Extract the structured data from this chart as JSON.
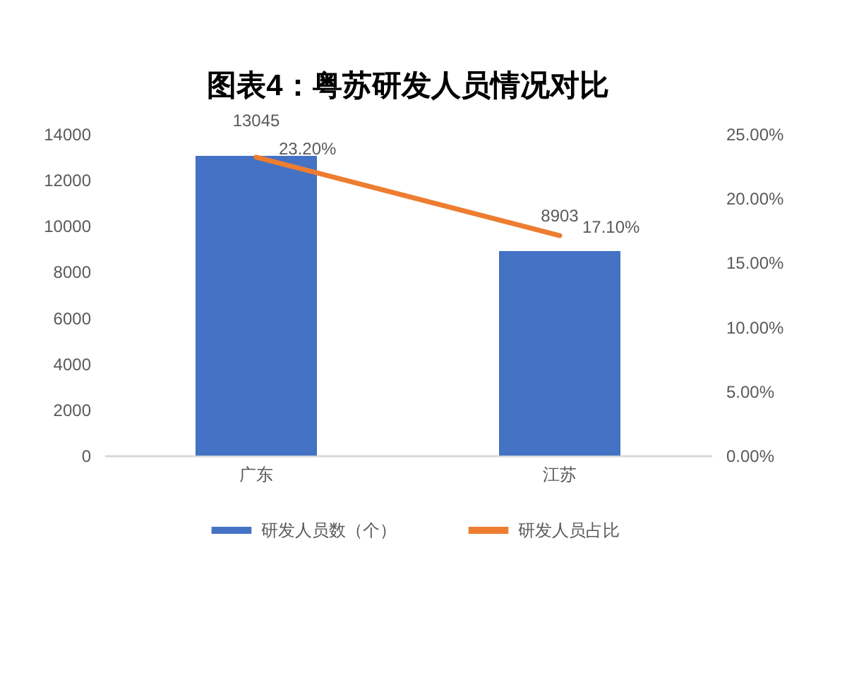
{
  "chart_data": {
    "type": "bar",
    "title": "图表4：粤苏研发人员情况对比",
    "categories": [
      "广东",
      "江苏"
    ],
    "series": [
      {
        "name": "研发人员数（个）",
        "color": "#4472c4",
        "values": [
          13045,
          8903
        ],
        "value_labels": [
          "13045",
          "8903"
        ]
      },
      {
        "name": "研发人员占比",
        "type": "line",
        "axis": "y2",
        "color": "#ed7d31",
        "values": [
          23.2,
          17.1
        ],
        "value_labels": [
          "23.20%",
          "17.10%"
        ]
      }
    ],
    "ylim": [
      0,
      14000
    ],
    "yticks": [
      0,
      2000,
      4000,
      6000,
      8000,
      10000,
      12000,
      14000
    ],
    "y2lim": [
      0,
      25
    ],
    "y2ticks": [
      {
        "value": 0,
        "label": "0.00%"
      },
      {
        "value": 5,
        "label": "5.00%"
      },
      {
        "value": 10,
        "label": "10.00%"
      },
      {
        "value": 15,
        "label": "15.00%"
      },
      {
        "value": 20,
        "label": "20.00%"
      },
      {
        "value": 25,
        "label": "25.00%"
      }
    ],
    "legend": "bottom"
  }
}
